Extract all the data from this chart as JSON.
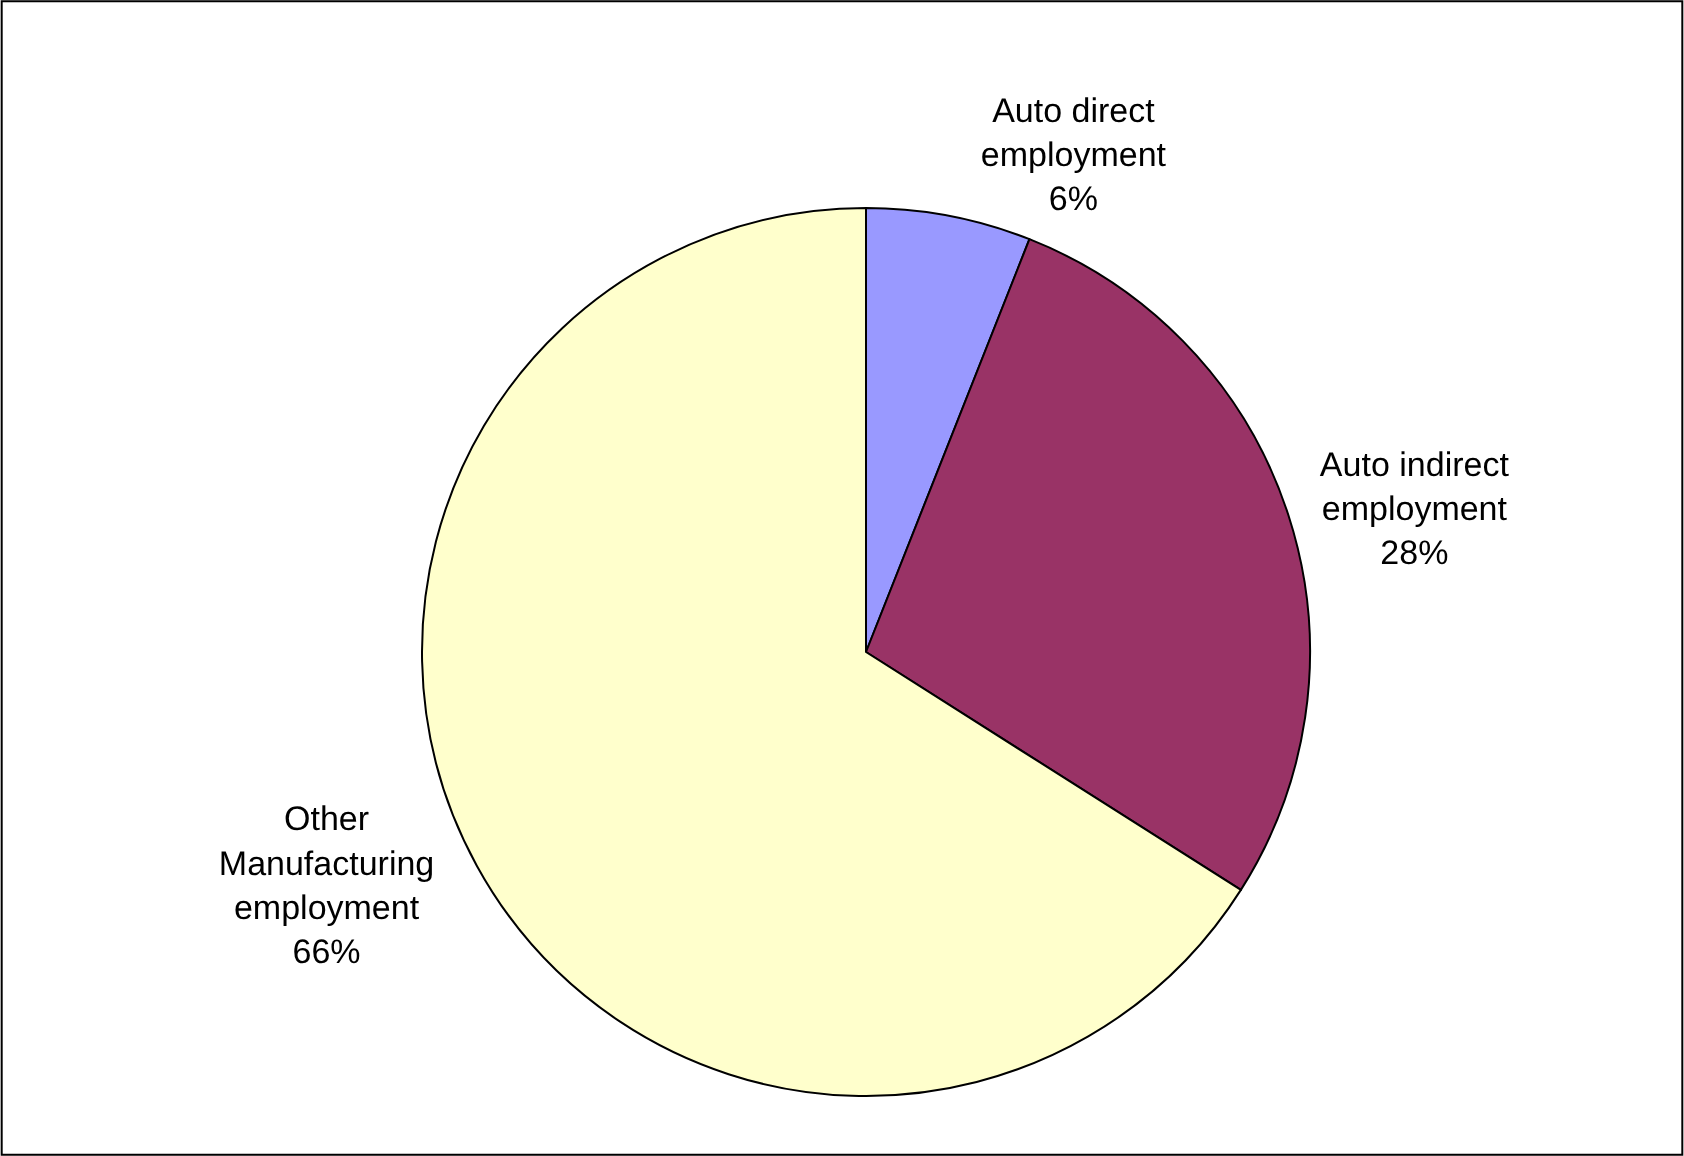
{
  "chart_data": {
    "type": "pie",
    "categories": [
      "Auto direct employment",
      "Auto indirect employment",
      "Other Manufacturing employment"
    ],
    "values": [
      6,
      28,
      66
    ],
    "colors": [
      "#9999ff",
      "#993366",
      "#ffffcc"
    ],
    "value_labels": [
      "6%",
      "28%",
      "66%"
    ],
    "legend": false
  }
}
